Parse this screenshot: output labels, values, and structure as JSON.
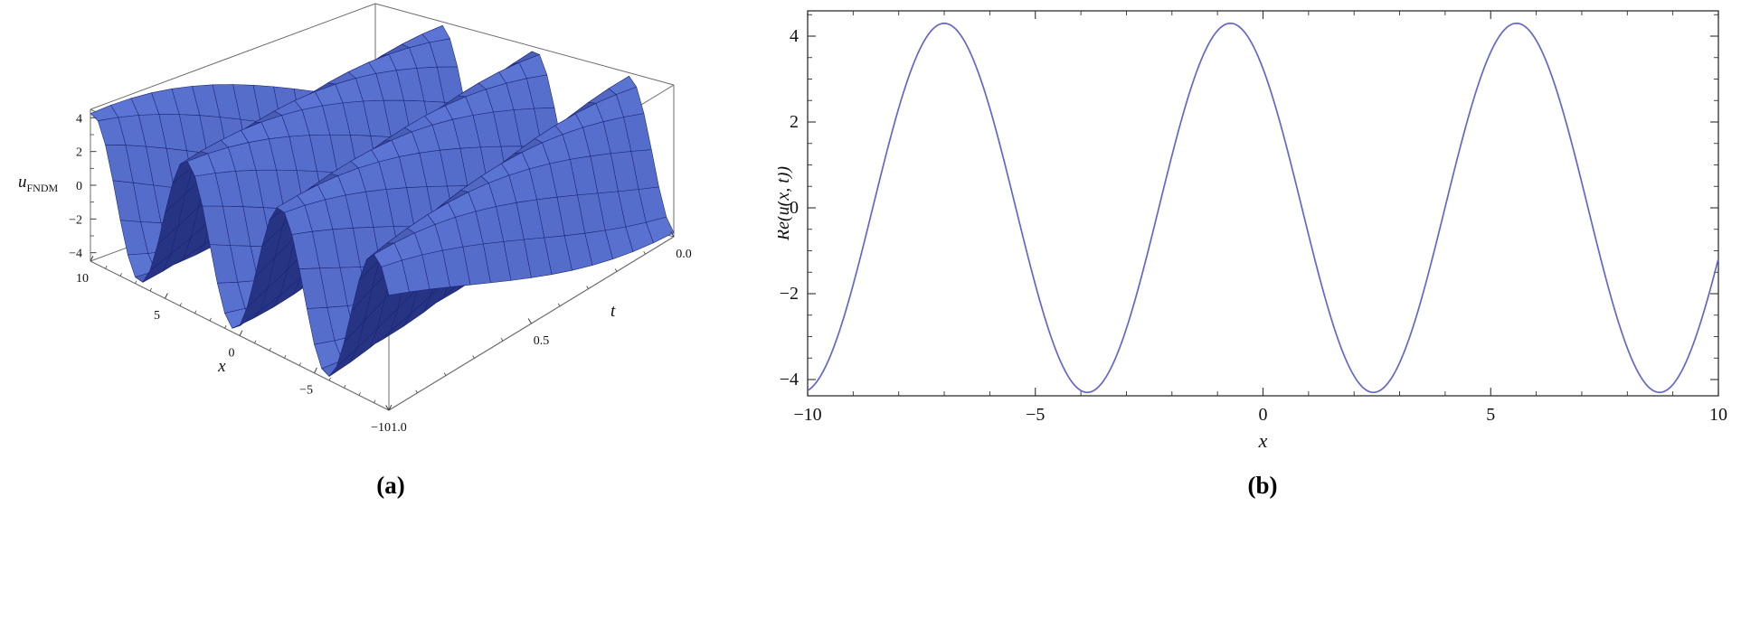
{
  "figure": {
    "panel_a_label": "(a)",
    "panel_b_label": "(b)"
  },
  "chart_data": [
    {
      "id": "panel-a",
      "type": "surface",
      "zlabel": {
        "base": "u",
        "subscript": "FNDM"
      },
      "xlabel": "x",
      "ylabel": "t",
      "x_range": [
        -10,
        10
      ],
      "t_range": [
        0,
        1
      ],
      "z_range": [
        -4.5,
        4.5
      ],
      "x_ticks": [
        {
          "v": 10,
          "label": "10"
        },
        {
          "v": 5,
          "label": "5"
        },
        {
          "v": 0,
          "label": "0"
        },
        {
          "v": -5,
          "label": "−5"
        },
        {
          "v": -10,
          "label": "−10"
        }
      ],
      "t_ticks": [
        {
          "v": 1,
          "label": "1.0"
        },
        {
          "v": 0.5,
          "label": "0.5"
        },
        {
          "v": 0,
          "label": "0.0"
        }
      ],
      "z_ticks": [
        {
          "v": 4,
          "label": "4"
        },
        {
          "v": 2,
          "label": "2"
        },
        {
          "v": 0,
          "label": "0"
        },
        {
          "v": -2,
          "label": "−2"
        },
        {
          "v": -4,
          "label": "−4"
        }
      ],
      "x_minor_step": 1,
      "t_minor_step": 0.1,
      "z_minor_step": 1,
      "surface": {
        "formula": "u_FNDM(x,t) = 4.3 cos(x + 2t + 7)",
        "amplitude": 4.3,
        "wave_number": 1,
        "speed": 2,
        "phase": 7
      },
      "colors": {
        "fill_light": "#5d77d6",
        "fill_dark": "#17216b",
        "mesh": "#1b2474",
        "box_edge": "#6b6b6b",
        "tick": "#3a3a3a",
        "label": "#111111"
      }
    },
    {
      "id": "panel-b",
      "type": "line",
      "xlabel": "x",
      "ylabel": "Re(u(x, t))",
      "x_range": [
        -10,
        10
      ],
      "y_range": [
        -4.8,
        4.8
      ],
      "x_ticks": [
        {
          "v": -10,
          "label": "−10"
        },
        {
          "v": -5,
          "label": "−5"
        },
        {
          "v": 0,
          "label": "0"
        },
        {
          "v": 5,
          "label": "5"
        },
        {
          "v": 10,
          "label": "10"
        }
      ],
      "y_ticks": [
        {
          "v": 4,
          "label": "4"
        },
        {
          "v": 2,
          "label": "2"
        },
        {
          "v": 0,
          "label": "0"
        },
        {
          "v": -2,
          "label": "−2"
        },
        {
          "v": -4,
          "label": "−4"
        }
      ],
      "x_minor_step": 1,
      "y_minor_step": 0.5,
      "curve": {
        "formula": "Re(u(x,t)) = 4.3 cos(x + 7)",
        "amplitude": 4.3,
        "phase": 7
      },
      "samples": {
        "x_start": -10,
        "x_step": 0.5,
        "y": [
          -4.26,
          -3.44,
          -1.79,
          0.3,
          2.32,
          3.77,
          4.3,
          3.77,
          2.32,
          0.3,
          -1.79,
          -3.44,
          -4.26,
          -4.03,
          -2.81,
          -0.91,
          1.22,
          3.05,
          4.13,
          4.2,
          3.24,
          1.49,
          -0.63,
          -2.59,
          -3.92,
          -4.29,
          -3.61,
          -2.04,
          0.02,
          2.08,
          3.63,
          4.29,
          3.9,
          2.56,
          0.59,
          -1.53,
          -3.27,
          -4.21,
          -4.12,
          -3.02,
          -1.18
        ]
      },
      "colors": {
        "line": "#6466cb",
        "frame": "#2e2e2e",
        "tick": "#2e2e2e",
        "label": "#111111"
      }
    }
  ]
}
